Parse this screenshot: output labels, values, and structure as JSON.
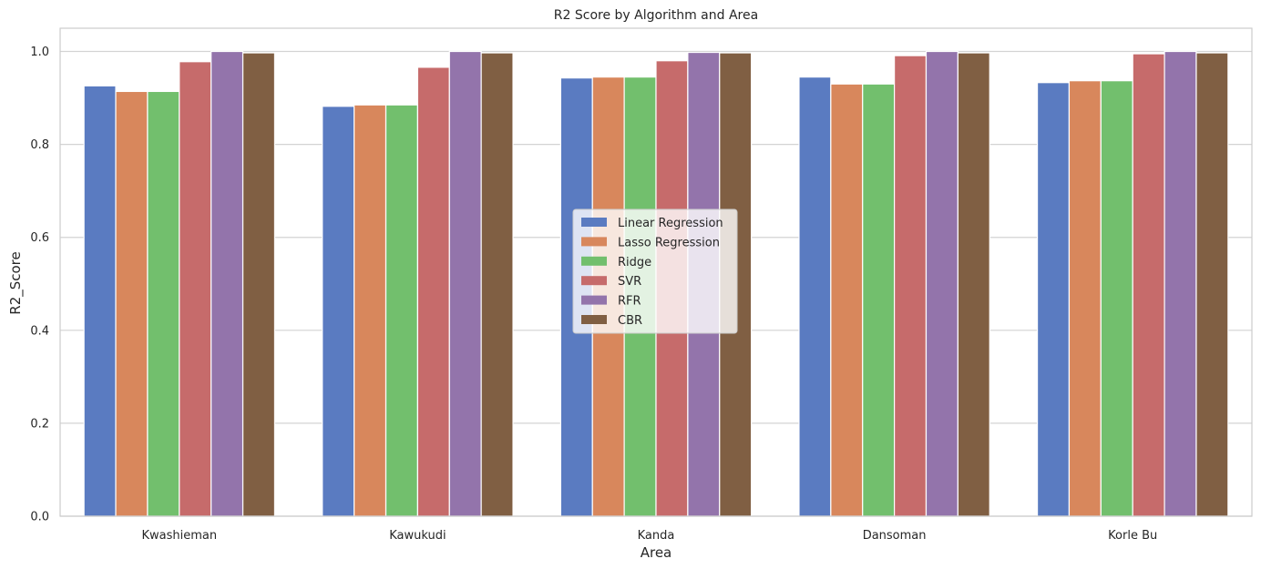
{
  "chart_data": {
    "type": "bar",
    "title": "R2 Score by Algorithm and Area",
    "xlabel": "Area",
    "ylabel": "R2_Score",
    "ylim": [
      0,
      1.05
    ],
    "yticks": [
      "0.0",
      "0.2",
      "0.4",
      "0.6",
      "0.8",
      "1.0"
    ],
    "grid": "horizontal",
    "legend_position": "center",
    "categories": [
      "Kwashieman",
      "Kawukudi",
      "Kanda",
      "Dansoman",
      "Korle Bu"
    ],
    "series": [
      {
        "name": "Linear Regression",
        "color": "#5a7bc1",
        "values": [
          0.926,
          0.882,
          0.943,
          0.945,
          0.933
        ]
      },
      {
        "name": "Lasso Regression",
        "color": "#d8875c",
        "values": [
          0.914,
          0.885,
          0.945,
          0.93,
          0.937
        ]
      },
      {
        "name": "Ridge",
        "color": "#72bf6d",
        "values": [
          0.914,
          0.885,
          0.945,
          0.93,
          0.937
        ]
      },
      {
        "name": "SVR",
        "color": "#c66b6b",
        "values": [
          0.978,
          0.966,
          0.98,
          0.991,
          0.995
        ]
      },
      {
        "name": "RFR",
        "color": "#9374ab",
        "values": [
          1.0,
          1.0,
          0.998,
          1.0,
          1.0
        ]
      },
      {
        "name": "CBR",
        "color": "#805f43",
        "values": [
          0.997,
          0.997,
          0.997,
          0.997,
          0.997
        ]
      }
    ]
  }
}
